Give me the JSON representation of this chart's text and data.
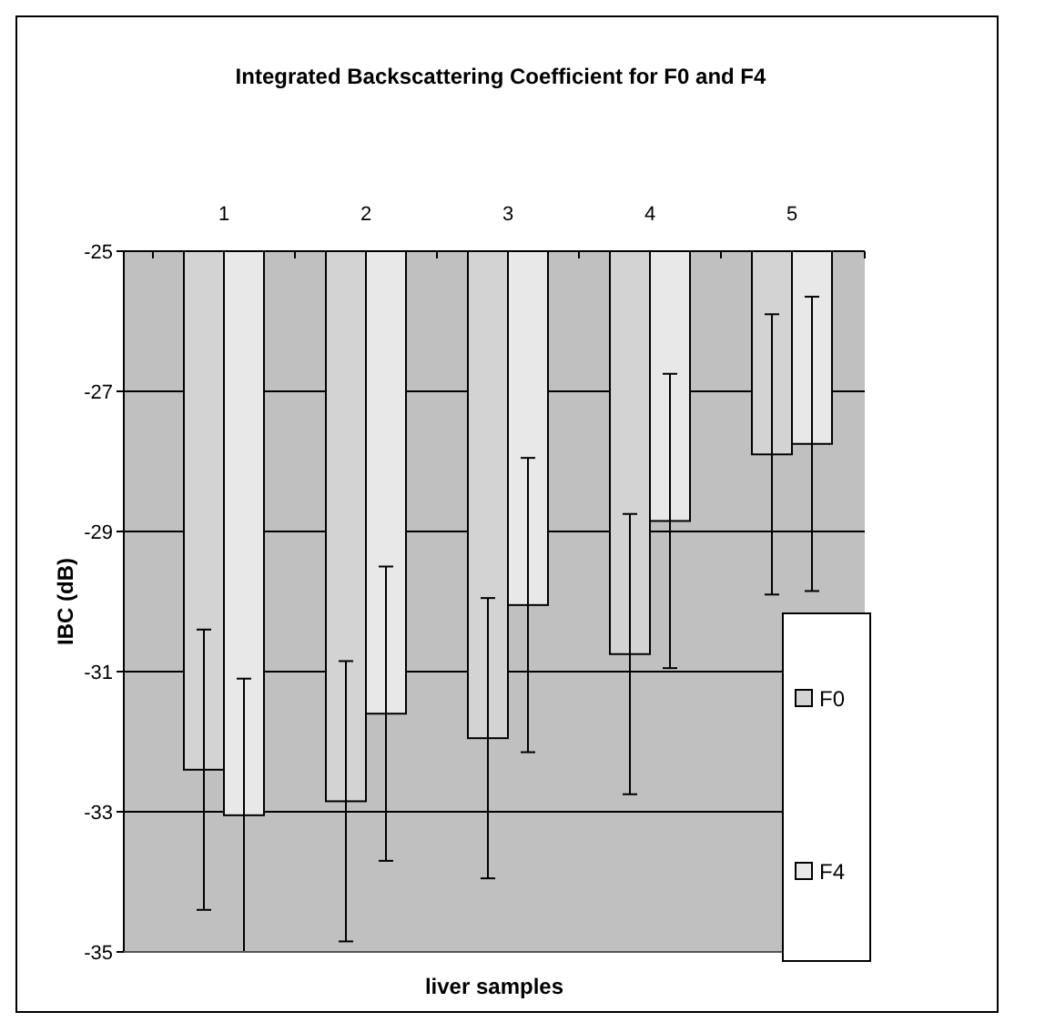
{
  "chart_data": {
    "type": "bar",
    "title": "Integrated Backscattering Coefficient for F0 and F4",
    "xlabel": "liver samples",
    "ylabel": "IBC (dB)",
    "categories": [
      "1",
      "2",
      "3",
      "4",
      "5"
    ],
    "series": [
      {
        "name": "F0",
        "color": "#d3d3d3",
        "values": [
          -32.4,
          -32.85,
          -31.95,
          -30.75,
          -27.9
        ],
        "errors": [
          2,
          2,
          2,
          2,
          2
        ]
      },
      {
        "name": "F4",
        "color": "#e8e8e8",
        "values": [
          -33.05,
          -31.6,
          -30.05,
          -28.85,
          -27.75
        ],
        "errors": [
          1.95,
          2.1,
          2.1,
          2.1,
          2.1
        ]
      }
    ],
    "ylim": [
      -35,
      -25
    ],
    "yticks": [
      -35,
      -33,
      -31,
      -29,
      -27,
      -25
    ],
    "grid": "y",
    "legend": "right"
  }
}
